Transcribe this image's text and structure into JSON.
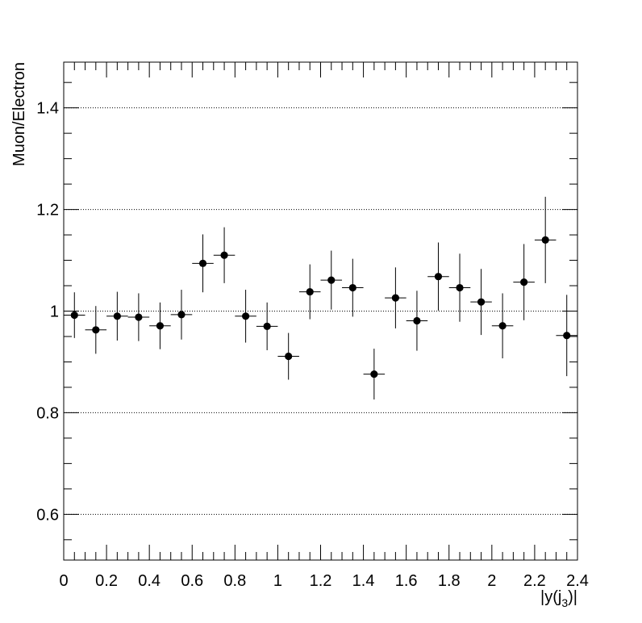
{
  "chart_data": {
    "type": "scatter",
    "title": "",
    "xlabel": "|y(j_3)|",
    "xlabel_parts": {
      "pre": "|y(j",
      "sub": "3",
      "post": ")|"
    },
    "ylabel": "Muon/Electron",
    "xlim": [
      0,
      2.4
    ],
    "ylim": [
      0.51,
      1.49
    ],
    "x_ticks": [
      "0",
      "0.2",
      "0.4",
      "0.6",
      "0.8",
      "1",
      "1.2",
      "1.4",
      "1.6",
      "1.8",
      "2",
      "2.2",
      "2.4"
    ],
    "y_ticks": [
      "0.6",
      "0.8",
      "1",
      "1.2",
      "1.4"
    ],
    "y_grid": "dotted horizontal at major y ticks",
    "marker_color": "#000000",
    "series": [
      {
        "x_half_width": 0.05,
        "points": [
          {
            "x": 0.05,
            "y": 0.992,
            "err": 0.045
          },
          {
            "x": 0.15,
            "y": 0.963,
            "err": 0.047
          },
          {
            "x": 0.25,
            "y": 0.99,
            "err": 0.048
          },
          {
            "x": 0.35,
            "y": 0.988,
            "err": 0.047
          },
          {
            "x": 0.45,
            "y": 0.971,
            "err": 0.046
          },
          {
            "x": 0.55,
            "y": 0.993,
            "err": 0.049
          },
          {
            "x": 0.65,
            "y": 1.094,
            "err": 0.057
          },
          {
            "x": 0.75,
            "y": 1.11,
            "err": 0.055
          },
          {
            "x": 0.85,
            "y": 0.99,
            "err": 0.052
          },
          {
            "x": 0.95,
            "y": 0.97,
            "err": 0.047
          },
          {
            "x": 1.05,
            "y": 0.911,
            "err": 0.046
          },
          {
            "x": 1.15,
            "y": 1.038,
            "err": 0.054
          },
          {
            "x": 1.25,
            "y": 1.061,
            "err": 0.058
          },
          {
            "x": 1.35,
            "y": 1.046,
            "err": 0.057
          },
          {
            "x": 1.45,
            "y": 0.876,
            "err": 0.05
          },
          {
            "x": 1.55,
            "y": 1.026,
            "err": 0.06
          },
          {
            "x": 1.65,
            "y": 0.981,
            "err": 0.059
          },
          {
            "x": 1.75,
            "y": 1.068,
            "err": 0.067
          },
          {
            "x": 1.85,
            "y": 1.046,
            "err": 0.067
          },
          {
            "x": 1.95,
            "y": 1.018,
            "err": 0.065
          },
          {
            "x": 2.05,
            "y": 0.971,
            "err": 0.064
          },
          {
            "x": 2.15,
            "y": 1.057,
            "err": 0.075
          },
          {
            "x": 2.25,
            "y": 1.14,
            "err": 0.085
          },
          {
            "x": 2.35,
            "y": 0.952,
            "err": 0.08
          }
        ]
      }
    ]
  }
}
